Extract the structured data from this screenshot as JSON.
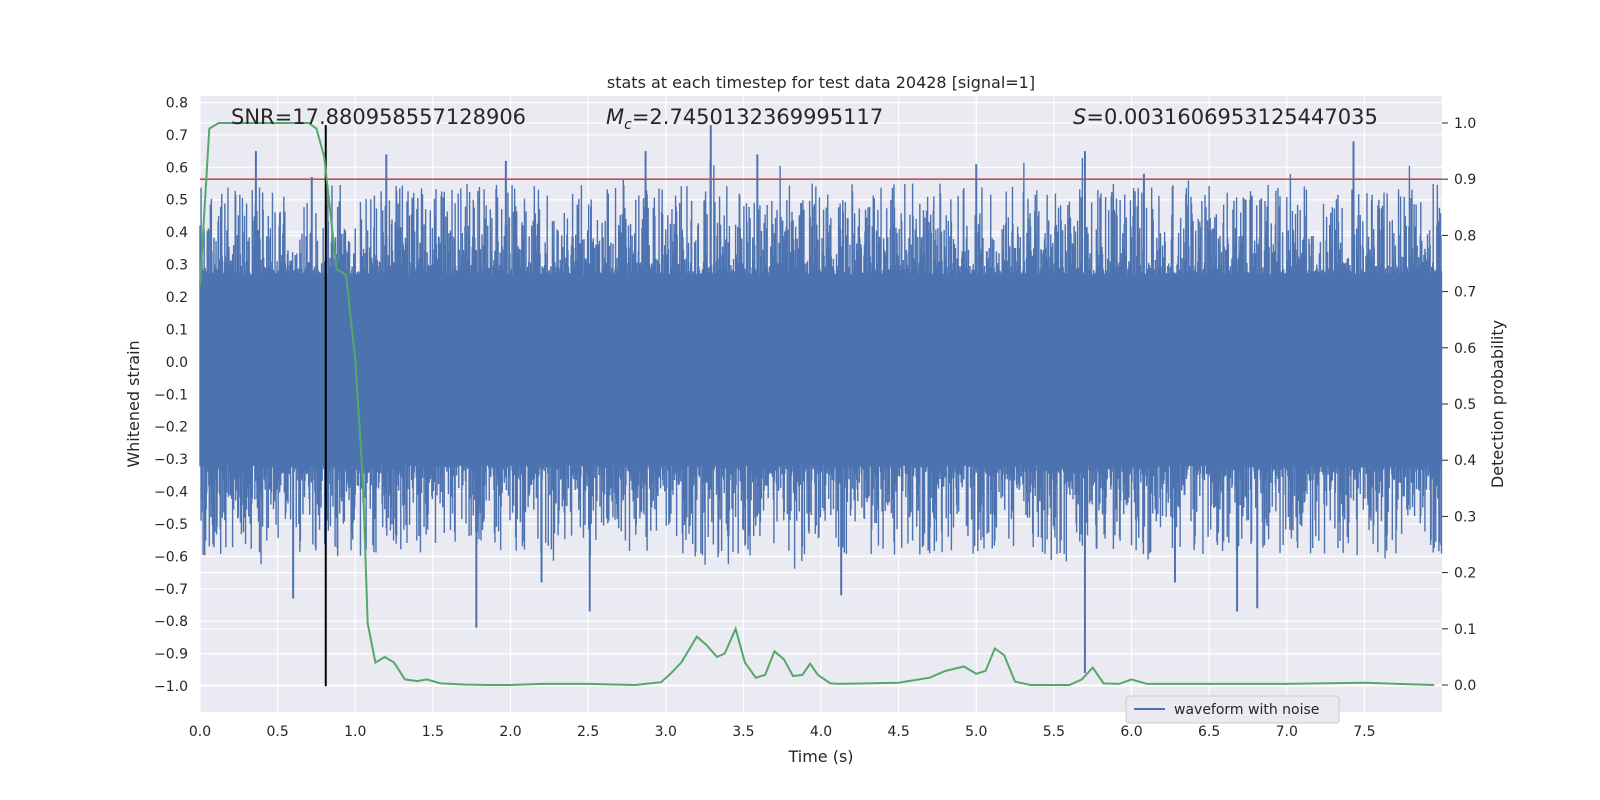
{
  "chart_data": {
    "type": "line",
    "title": "stats at each timestep for test data 20428 [signal=1]",
    "xlabel": "Time (s)",
    "ylabel": "Whitened strain",
    "y2label": "Detection probability",
    "xlim": [
      0.0,
      8.0
    ],
    "ylim": [
      -1.08,
      0.82
    ],
    "y2lim": [
      -0.048,
      1.048
    ],
    "x_ticks": [
      "0.0",
      "0.5",
      "1.0",
      "1.5",
      "2.0",
      "2.5",
      "3.0",
      "3.5",
      "4.0",
      "4.5",
      "5.0",
      "5.5",
      "6.0",
      "6.5",
      "7.0",
      "7.5"
    ],
    "x_tick_values": [
      0.0,
      0.5,
      1.0,
      1.5,
      2.0,
      2.5,
      3.0,
      3.5,
      4.0,
      4.5,
      5.0,
      5.5,
      6.0,
      6.5,
      7.0,
      7.5
    ],
    "y_ticks": [
      "0.8",
      "0.7",
      "0.6",
      "0.5",
      "0.4",
      "0.3",
      "0.2",
      "0.1",
      "0.0",
      "−0.1",
      "−0.2",
      "−0.3",
      "−0.4",
      "−0.5",
      "−0.6",
      "−0.7",
      "−0.8",
      "−0.9",
      "−1.0"
    ],
    "y_tick_values": [
      0.8,
      0.7,
      0.6,
      0.5,
      0.4,
      0.3,
      0.2,
      0.1,
      0.0,
      -0.1,
      -0.2,
      -0.3,
      -0.4,
      -0.5,
      -0.6,
      -0.7,
      -0.8,
      -0.9,
      -1.0
    ],
    "y2_ticks": [
      "1.0",
      "0.9",
      "0.8",
      "0.7",
      "0.6",
      "0.5",
      "0.4",
      "0.3",
      "0.2",
      "0.1",
      "0.0"
    ],
    "y2_tick_values": [
      1.0,
      0.9,
      0.8,
      0.7,
      0.6,
      0.5,
      0.4,
      0.3,
      0.2,
      0.1,
      0.0
    ],
    "annotations": {
      "snr": "SNR=17.880958557128906",
      "mc_symbol": "M",
      "mc_subscript": "c",
      "mc_value": "=2.7450132369995117",
      "s_symbol": "S",
      "s_value": "=0.0031606953125447035"
    },
    "threshold": {
      "value": 0.9,
      "axis": "y2",
      "color": "#c44e52"
    },
    "marker_line": {
      "x": 0.81,
      "y_from": -1.0,
      "y_to": 0.73,
      "color": "#000000"
    },
    "grid": true,
    "legend": {
      "position": "lower-right",
      "entries": [
        "waveform with noise"
      ]
    },
    "series": [
      {
        "name": "waveform with noise",
        "axis": "y",
        "color": "#4c72b0",
        "style": "dense-noise",
        "envelope": {
          "positive_core": 0.27,
          "negative_core": -0.32,
          "max": 0.73,
          "min": -0.96
        },
        "spikes": [
          {
            "x": 0.36,
            "y": 0.65
          },
          {
            "x": 0.6,
            "y": -0.73
          },
          {
            "x": 0.72,
            "y": 0.57
          },
          {
            "x": 1.2,
            "y": 0.64
          },
          {
            "x": 1.78,
            "y": -0.82
          },
          {
            "x": 1.97,
            "y": 0.62
          },
          {
            "x": 2.2,
            "y": -0.68
          },
          {
            "x": 2.51,
            "y": -0.77
          },
          {
            "x": 2.87,
            "y": 0.65
          },
          {
            "x": 3.29,
            "y": 0.73
          },
          {
            "x": 3.59,
            "y": 0.64
          },
          {
            "x": 4.13,
            "y": -0.72
          },
          {
            "x": 5.0,
            "y": 0.61
          },
          {
            "x": 5.7,
            "y": -0.96
          },
          {
            "x": 5.7,
            "y": 0.65
          },
          {
            "x": 6.08,
            "y": 0.58
          },
          {
            "x": 6.28,
            "y": -0.68
          },
          {
            "x": 6.68,
            "y": -0.77
          },
          {
            "x": 6.81,
            "y": -0.76
          },
          {
            "x": 7.43,
            "y": 0.68
          }
        ]
      },
      {
        "name": "",
        "axis": "y2",
        "color": "#55a868",
        "x": [
          0.0,
          0.06,
          0.12,
          0.2,
          0.3,
          0.4,
          0.5,
          0.6,
          0.7,
          0.75,
          0.8,
          0.88,
          0.94,
          1.0,
          1.05,
          1.08,
          1.13,
          1.19,
          1.25,
          1.32,
          1.4,
          1.46,
          1.55,
          1.7,
          1.85,
          2.0,
          2.2,
          2.5,
          2.8,
          2.97,
          3.03,
          3.1,
          3.2,
          3.26,
          3.33,
          3.38,
          3.45,
          3.51,
          3.58,
          3.64,
          3.7,
          3.76,
          3.82,
          3.88,
          3.93,
          3.98,
          4.06,
          4.12,
          4.3,
          4.5,
          4.7,
          4.8,
          4.92,
          5.0,
          5.06,
          5.12,
          5.18,
          5.25,
          5.35,
          5.6,
          5.68,
          5.75,
          5.82,
          5.92,
          6.0,
          6.1,
          6.5,
          7.0,
          7.5,
          7.95
        ],
        "y": [
          0.71,
          0.99,
          1.0,
          1.0,
          1.0,
          1.0,
          1.0,
          1.0,
          1.0,
          0.99,
          0.94,
          0.74,
          0.73,
          0.58,
          0.36,
          0.11,
          0.04,
          0.05,
          0.04,
          0.01,
          0.007,
          0.01,
          0.003,
          0.001,
          0.0,
          0.0,
          0.002,
          0.002,
          0.0,
          0.005,
          0.02,
          0.04,
          0.086,
          0.072,
          0.05,
          0.056,
          0.1,
          0.04,
          0.013,
          0.018,
          0.06,
          0.046,
          0.016,
          0.018,
          0.038,
          0.018,
          0.003,
          0.002,
          0.003,
          0.004,
          0.013,
          0.025,
          0.033,
          0.02,
          0.025,
          0.065,
          0.053,
          0.006,
          0.0,
          0.0,
          0.01,
          0.031,
          0.003,
          0.002,
          0.01,
          0.002,
          0.002,
          0.002,
          0.004,
          0.0
        ]
      }
    ]
  }
}
